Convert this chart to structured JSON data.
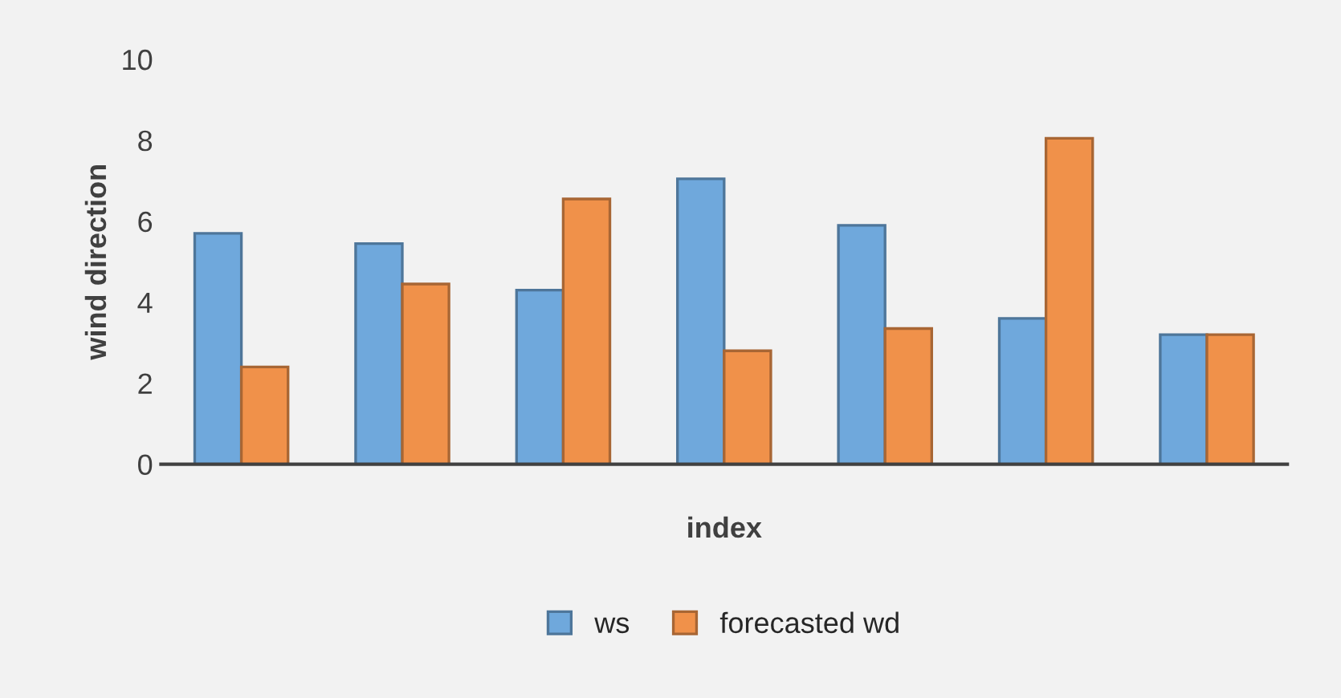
{
  "chart_data": {
    "type": "bar",
    "xlabel": "index",
    "ylabel": "wind direction",
    "categories": [
      null,
      null,
      null,
      null,
      null,
      null,
      null
    ],
    "series": [
      {
        "name": "ws",
        "color": "#6fa8dc",
        "values": [
          5.7,
          5.45,
          4.3,
          7.05,
          5.9,
          3.6,
          3.2
        ]
      },
      {
        "name": "forecasted wd",
        "color": "#f0914a",
        "values": [
          2.4,
          4.45,
          6.55,
          2.8,
          3.35,
          8.05,
          3.2
        ]
      }
    ],
    "ylim": [
      0,
      10
    ],
    "yticks": [
      0,
      2,
      4,
      6,
      8,
      10
    ],
    "grid": false,
    "legend": "bottom"
  }
}
